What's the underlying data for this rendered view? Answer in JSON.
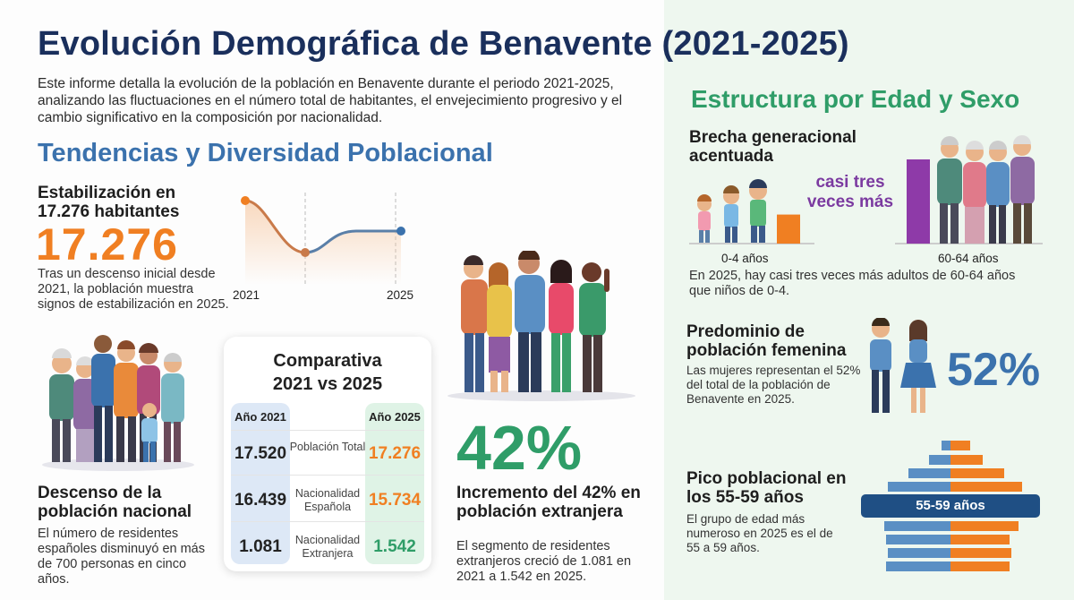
{
  "header": {
    "title": "Evolución Demográfica de Benavente (2021-2025)",
    "intro": "Este informe detalla la evolución de la población en Benavente durante el periodo 2021-2025, analizando las fluctuaciones en el número total de habitantes, el envejecimiento progresivo y el cambio significativo en la composición por nacionalidad."
  },
  "left_section": {
    "heading": "Tendencias y Diversidad Poblacional",
    "stabilization": {
      "title": "Estabilización en 17.276 habitantes",
      "big_number": "17.276",
      "text": "Tras un descenso inicial desde 2021, la población muestra signos de estabilización en 2025.",
      "axis_start": "2021",
      "axis_end": "2025",
      "trend": {
        "start": 17520,
        "min": 16900,
        "end": 17276
      }
    },
    "national_decline": {
      "title": "Descenso de la población nacional",
      "text": "El número de residentes españoles disminuyó en más de 700 personas en cinco años."
    },
    "comparison": {
      "title_line1": "Comparativa",
      "title_line2": "2021 vs 2025",
      "col_2021": "Año 2021",
      "col_2025": "Año 2025",
      "rows": [
        {
          "v2021": "17.520",
          "label": "Población Total",
          "v2025": "17.276",
          "color2025": "#f07f22"
        },
        {
          "v2021": "16.439",
          "label": "Nacionalidad Española",
          "v2025": "15.734",
          "color2025": "#f07f22"
        },
        {
          "v2021": "1.081",
          "label": "Nacionalidad Extranjera",
          "v2025": "1.542",
          "color2025": "#2f9d68"
        }
      ]
    },
    "foreign_growth": {
      "big_number": "42%",
      "title": "Incremento del 42% en población extranjera",
      "text": "El segmento de residentes extranjeros creció de 1.081 en 2021 a 1.542 en 2025."
    }
  },
  "right_section": {
    "heading": "Estructura por Edad y Sexo",
    "generation_gap": {
      "title": "Brecha generacional acentuada",
      "callout": "casi tres veces más",
      "label_young": "0-4 años",
      "label_old": "60-64 años",
      "bar_young_value": 1,
      "bar_old_value": 2.9,
      "text": "En 2025, hay casi tres veces más adultos de 60-64 años que niños de 0-4."
    },
    "female": {
      "title": "Predominio de población femenina",
      "text": "Las mujeres representan el 52% del total de la población de Benavente en 2025.",
      "big_number": "52%"
    },
    "peak": {
      "title": "Pico poblacional en los 55-59 años",
      "text": "El grupo de edad más numeroso en 2025 es el de 55 a 59 años.",
      "pill": "55-59 años"
    }
  },
  "colors": {
    "navy": "#1a2f5c",
    "blue": "#3b72ad",
    "green": "#2f9d68",
    "orange": "#f07f22",
    "purple": "#7b3aa0"
  }
}
